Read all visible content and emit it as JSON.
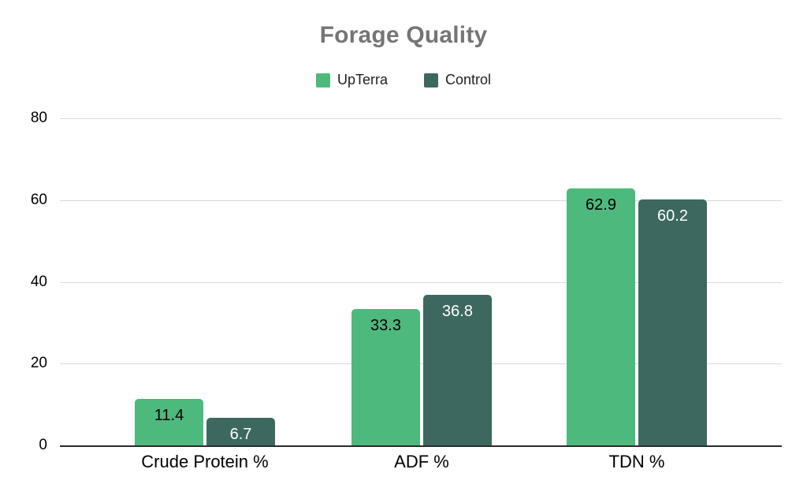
{
  "chart_data": {
    "type": "bar",
    "title": "Forage Quality",
    "categories": [
      "Crude Protein %",
      "ADF %",
      "TDN %"
    ],
    "series": [
      {
        "name": "UpTerra",
        "color": "#4DB97D",
        "label_color": "#000000",
        "values": [
          11.4,
          33.3,
          62.9
        ]
      },
      {
        "name": "Control",
        "color": "#3C685F",
        "label_color": "#ffffff",
        "values": [
          6.7,
          36.8,
          60.2
        ]
      }
    ],
    "xlabel": "",
    "ylabel": "",
    "ylim": [
      0,
      80
    ],
    "yticks": [
      0,
      20,
      40,
      60,
      80
    ],
    "grid": true,
    "legend_position": "top",
    "title_color": "#757575",
    "gridline_color": "#d9d9d9",
    "axis_line_color": "#2b2b2b",
    "background_color": "#ffffff"
  }
}
